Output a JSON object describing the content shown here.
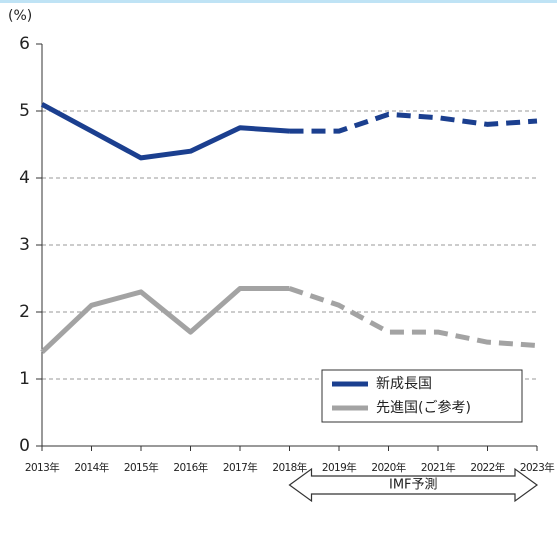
{
  "chart_data": {
    "type": "line",
    "y_label": "(%)",
    "categories": [
      "2013年",
      "2014年",
      "2015年",
      "2016年",
      "2017年",
      "2018年",
      "2019年",
      "2020年",
      "2021年",
      "2022年",
      "2023年"
    ],
    "series": [
      {
        "name": "新成長国",
        "color": "#1b3f8f",
        "values": [
          5.1,
          4.7,
          4.3,
          4.4,
          4.75,
          4.7,
          4.7,
          4.95,
          4.9,
          4.8,
          4.85
        ]
      },
      {
        "name": "先進国(ご参考)",
        "color": "#a3a3a3",
        "values": [
          1.4,
          2.1,
          2.3,
          1.7,
          2.35,
          2.35,
          2.1,
          1.7,
          1.7,
          1.55,
          1.5
        ]
      }
    ],
    "ylim": [
      0,
      6
    ],
    "yticks": [
      0,
      1,
      2,
      3,
      4,
      5,
      6
    ],
    "grid": true,
    "legend": "lower right",
    "annotation": {
      "text": "IMF予測",
      "from": "2018年",
      "to": "2023年"
    }
  }
}
